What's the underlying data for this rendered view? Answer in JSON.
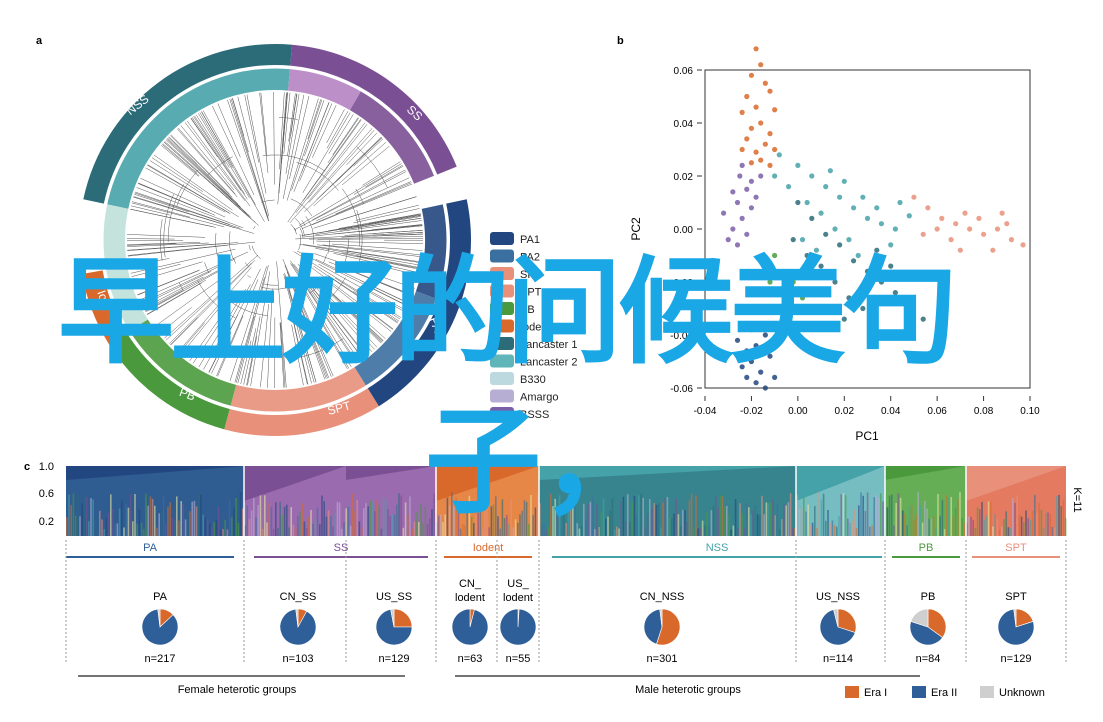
{
  "panels": {
    "a": "a",
    "b": "b",
    "c": "c"
  },
  "colors": {
    "PA": "#22467f",
    "PA2": "#3b6fa0",
    "SS": "#7b4f94",
    "SS_light": "#b583c2",
    "Iodent": "#d9692a",
    "NSS": "#2c6b78",
    "NSS_light": "#45a2a8",
    "Lancaster2": "#5fb5b8",
    "Amargo": "#b7aed3",
    "BSSS": "#7b5ea8",
    "PB": "#4a9a3d",
    "SPT": "#e8907a",
    "overlay_text": "#1aa7e6",
    "era1": "#d9692a",
    "era2": "#2f5f98",
    "unknown": "#cfcfcf"
  },
  "panel_a": {
    "ring_labels": [
      "NSS",
      "SS",
      "PB",
      "SPT",
      "Iod",
      "PA"
    ],
    "legend": [
      {
        "label": "PA1",
        "color": "#22467f"
      },
      {
        "label": "PA2",
        "color": "#3b6fa0"
      },
      {
        "label": "SPT",
        "color": "#e8907a"
      },
      {
        "label": "SPT",
        "color": "#e8907a"
      },
      {
        "label": "PB",
        "color": "#4a9a3d"
      },
      {
        "label": "Iodent",
        "color": "#d9692a"
      },
      {
        "label": "Lancaster 1",
        "color": "#2c6b78"
      },
      {
        "label": "Lancaster 2",
        "color": "#5fb5b8"
      },
      {
        "label": "B330",
        "color": "#bcd9e0"
      },
      {
        "label": "Amargo",
        "color": "#b7aed3"
      },
      {
        "label": "BSSS",
        "color": "#7b5ea8"
      }
    ]
  },
  "chart_data": {
    "type": "scatter",
    "xlabel": "PC1",
    "ylabel": "PC2",
    "xlim": [
      -0.04,
      0.1
    ],
    "ylim": [
      -0.06,
      0.06
    ],
    "x_ticks": [
      "-0.04",
      "-0.02",
      "0.00",
      "0.02",
      "0.04",
      "0.06",
      "0.08",
      "0.10"
    ],
    "y_ticks": [
      "0.06",
      "0.04",
      "0.02",
      "0.00",
      "-0.02",
      "-0.04",
      "-0.06"
    ],
    "series": [
      {
        "color": "#d9692a",
        "points": [
          [
            -0.018,
            0.068
          ],
          [
            -0.016,
            0.062
          ],
          [
            -0.02,
            0.058
          ],
          [
            -0.014,
            0.055
          ],
          [
            -0.022,
            0.05
          ],
          [
            -0.012,
            0.052
          ],
          [
            -0.018,
            0.046
          ],
          [
            -0.024,
            0.044
          ],
          [
            -0.01,
            0.045
          ],
          [
            -0.016,
            0.04
          ],
          [
            -0.02,
            0.038
          ],
          [
            -0.012,
            0.036
          ],
          [
            -0.022,
            0.034
          ],
          [
            -0.014,
            0.032
          ],
          [
            -0.018,
            0.029
          ],
          [
            -0.01,
            0.03
          ],
          [
            -0.024,
            0.03
          ],
          [
            -0.016,
            0.026
          ],
          [
            -0.02,
            0.025
          ],
          [
            -0.012,
            0.024
          ]
        ]
      },
      {
        "color": "#7b5ea8",
        "points": [
          [
            -0.025,
            0.02
          ],
          [
            -0.022,
            0.015
          ],
          [
            -0.026,
            0.01
          ],
          [
            -0.02,
            0.008
          ],
          [
            -0.024,
            0.004
          ],
          [
            -0.028,
            0.0
          ],
          [
            -0.022,
            -0.002
          ],
          [
            -0.026,
            -0.006
          ],
          [
            -0.018,
            0.012
          ],
          [
            -0.03,
            -0.004
          ],
          [
            -0.02,
            0.018
          ],
          [
            -0.024,
            0.024
          ],
          [
            -0.028,
            0.014
          ],
          [
            -0.016,
            0.02
          ],
          [
            -0.032,
            0.006
          ]
        ]
      },
      {
        "color": "#45a2a8",
        "points": [
          [
            -0.008,
            0.028
          ],
          [
            0.0,
            0.024
          ],
          [
            0.006,
            0.02
          ],
          [
            0.012,
            0.016
          ],
          [
            0.018,
            0.012
          ],
          [
            0.024,
            0.008
          ],
          [
            0.03,
            0.004
          ],
          [
            0.036,
            0.002
          ],
          [
            0.042,
            0.0
          ],
          [
            0.048,
            0.005
          ],
          [
            0.004,
            0.01
          ],
          [
            0.01,
            0.006
          ],
          [
            0.016,
            0.0
          ],
          [
            0.022,
            -0.004
          ],
          [
            -0.004,
            0.016
          ],
          [
            0.002,
            -0.004
          ],
          [
            0.008,
            -0.008
          ],
          [
            0.028,
            0.012
          ],
          [
            0.034,
            0.008
          ],
          [
            -0.01,
            0.02
          ],
          [
            0.014,
            0.022
          ],
          [
            0.04,
            -0.006
          ],
          [
            0.044,
            0.01
          ],
          [
            0.02,
            0.018
          ],
          [
            0.026,
            -0.01
          ]
        ]
      },
      {
        "color": "#e8907a",
        "points": [
          [
            0.05,
            0.012
          ],
          [
            0.056,
            0.008
          ],
          [
            0.062,
            0.004
          ],
          [
            0.068,
            0.002
          ],
          [
            0.074,
            0.0
          ],
          [
            0.08,
            -0.002
          ],
          [
            0.086,
            0.0
          ],
          [
            0.092,
            -0.004
          ],
          [
            0.097,
            -0.006
          ],
          [
            0.06,
            0.0
          ],
          [
            0.066,
            -0.004
          ],
          [
            0.072,
            0.006
          ],
          [
            0.078,
            0.004
          ],
          [
            0.084,
            -0.008
          ],
          [
            0.09,
            0.002
          ],
          [
            0.054,
            -0.002
          ],
          [
            0.07,
            -0.008
          ],
          [
            0.088,
            0.006
          ]
        ]
      },
      {
        "color": "#2c6b78",
        "points": [
          [
            0.0,
            0.01
          ],
          [
            0.006,
            0.004
          ],
          [
            0.012,
            -0.002
          ],
          [
            0.018,
            -0.006
          ],
          [
            0.024,
            -0.012
          ],
          [
            0.03,
            -0.016
          ],
          [
            0.036,
            -0.02
          ],
          [
            0.042,
            -0.024
          ],
          [
            0.048,
            -0.03
          ],
          [
            0.054,
            -0.034
          ],
          [
            0.004,
            -0.01
          ],
          [
            0.01,
            -0.014
          ],
          [
            0.016,
            -0.02
          ],
          [
            0.022,
            -0.026
          ],
          [
            0.028,
            -0.03
          ],
          [
            -0.002,
            -0.004
          ],
          [
            0.034,
            -0.008
          ],
          [
            0.04,
            -0.014
          ],
          [
            0.046,
            -0.018
          ],
          [
            0.02,
            -0.034
          ]
        ]
      },
      {
        "color": "#4a9a3d",
        "points": [
          [
            -0.01,
            -0.01
          ],
          [
            -0.006,
            -0.016
          ],
          [
            -0.002,
            -0.02
          ],
          [
            -0.008,
            -0.024
          ],
          [
            -0.004,
            -0.03
          ],
          [
            0.0,
            -0.036
          ],
          [
            -0.012,
            -0.02
          ],
          [
            0.002,
            -0.026
          ]
        ]
      },
      {
        "color": "#22467f",
        "points": [
          [
            -0.014,
            -0.04
          ],
          [
            -0.018,
            -0.044
          ],
          [
            -0.012,
            -0.048
          ],
          [
            -0.02,
            -0.05
          ],
          [
            -0.016,
            -0.054
          ],
          [
            -0.022,
            -0.046
          ],
          [
            -0.01,
            -0.056
          ],
          [
            -0.018,
            -0.058
          ],
          [
            -0.024,
            -0.052
          ],
          [
            -0.014,
            -0.06
          ],
          [
            -0.02,
            -0.038
          ],
          [
            -0.026,
            -0.042
          ],
          [
            -0.01,
            -0.044
          ],
          [
            -0.016,
            -0.036
          ],
          [
            -0.022,
            -0.056
          ]
        ]
      }
    ]
  },
  "panel_c": {
    "ylabel_ticks": [
      "1.0",
      "0.6",
      "0.2"
    ],
    "k_label": "K=11",
    "groups": [
      {
        "label": "PA",
        "color": "#2f5f98"
      },
      {
        "label": "SS",
        "color": "#7b4f94"
      },
      {
        "label": "Iodent",
        "color": "#d9692a"
      },
      {
        "label": "NSS",
        "color": "#45a2a8"
      },
      {
        "label": "PB",
        "color": "#4a9a3d"
      },
      {
        "label": "SPT",
        "color": "#e8907a"
      }
    ],
    "pies": [
      {
        "label": "PA",
        "n": "n=217",
        "era1": 0.13,
        "era2": 0.85,
        "unknown": 0.02
      },
      {
        "label": "CN_SS",
        "n": "n=103",
        "era1": 0.08,
        "era2": 0.9,
        "unknown": 0.02
      },
      {
        "label": "US_SS",
        "n": "n=129",
        "era1": 0.25,
        "era2": 0.72,
        "unknown": 0.03
      },
      {
        "label": "CN_\nlodent",
        "n": "n=63",
        "era1": 0.04,
        "era2": 0.96,
        "unknown": 0.0
      },
      {
        "label": "US_\nlodent",
        "n": "n=55",
        "era1": 0.01,
        "era2": 0.99,
        "unknown": 0.0
      },
      {
        "label": "CN_NSS",
        "n": "n=301",
        "era1": 0.55,
        "era2": 0.43,
        "unknown": 0.02
      },
      {
        "label": "US_NSS",
        "n": "n=114",
        "era1": 0.3,
        "era2": 0.66,
        "unknown": 0.04
      },
      {
        "label": "PB",
        "n": "n=84",
        "era1": 0.35,
        "era2": 0.45,
        "unknown": 0.2
      },
      {
        "label": "SPT",
        "n": "n=129",
        "era1": 0.2,
        "era2": 0.78,
        "unknown": 0.02
      }
    ],
    "footer_groups": [
      "Female heterotic groups",
      "Male heterotic groups"
    ],
    "legend": [
      {
        "label": "Era I",
        "color": "#d9692a"
      },
      {
        "label": "Era II",
        "color": "#2f5f98"
      },
      {
        "label": "Unknown",
        "color": "#cfcfcf"
      }
    ]
  },
  "overlay": {
    "line1": "早上好的问候美句",
    "line2": "子，"
  }
}
